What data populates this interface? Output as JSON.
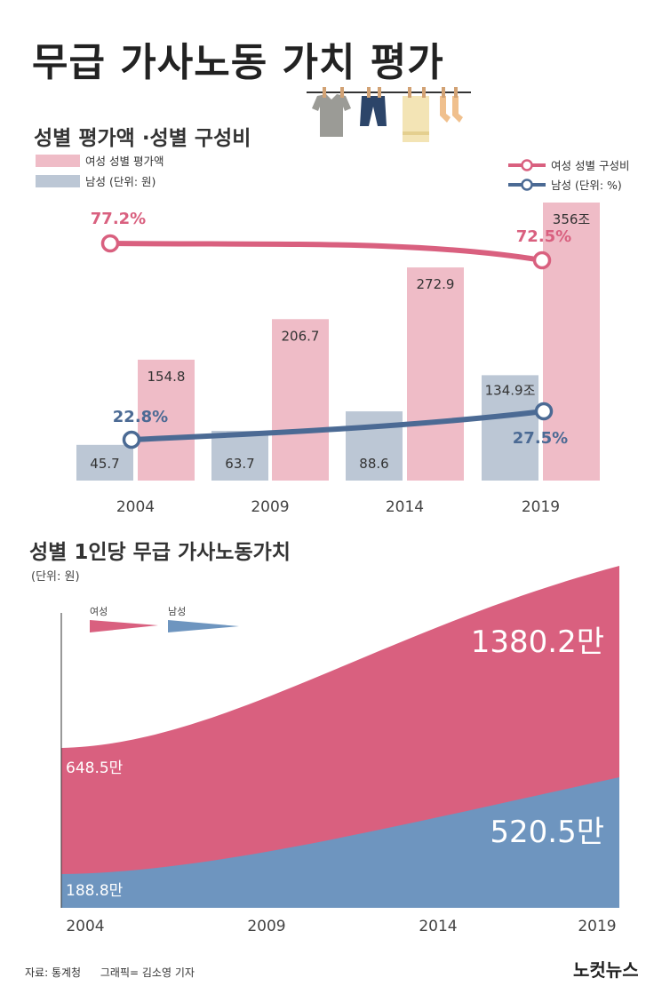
{
  "title": "무급 가사노동 가치 평가",
  "source": {
    "label": "자료: 통계청",
    "credit": "그래픽= 김소영 기자"
  },
  "brand": "노컷뉴스",
  "colors": {
    "female_bar": "#efbcc7",
    "male_bar": "#bcc7d5",
    "female_line": "#d9607f",
    "male_line": "#4b6a94",
    "female_area": "#d9607f",
    "male_area": "#6e95bf"
  },
  "section1": {
    "title": "성별 평가액 ·성별 구성비",
    "legend_left": [
      {
        "label": "여성  성별 평가액",
        "color": "#efbcc7"
      },
      {
        "label": "남성  (단위: 원)",
        "color": "#bcc7d5"
      }
    ],
    "legend_right": [
      {
        "label": "여성  성별 구성비",
        "color": "#d9607f"
      },
      {
        "label": "남성  (단위: %)",
        "color": "#4b6a94"
      }
    ]
  },
  "section2": {
    "title": "성별 1인당 무급 가사노동가치",
    "unit": "(단위: 원)",
    "legend": [
      {
        "label": "여성",
        "color": "#d9607f"
      },
      {
        "label": "남성",
        "color": "#6e95bf"
      }
    ]
  },
  "chart_data": [
    {
      "type": "bar",
      "title": "성별 평가액 ·성별 구성비",
      "categories": [
        "2004",
        "2009",
        "2014",
        "2019"
      ],
      "series": [
        {
          "name": "남성",
          "values": [
            45.7,
            63.7,
            88.6,
            134.9
          ],
          "labels": [
            "45.7",
            "63.7",
            "88.6",
            "134.9조"
          ]
        },
        {
          "name": "여성",
          "values": [
            154.8,
            206.7,
            272.9,
            356
          ],
          "labels": [
            "154.8",
            "206.7",
            "272.9",
            "356조"
          ]
        }
      ],
      "unit": "조 원"
    },
    {
      "type": "line",
      "title": "성별 구성비",
      "x": [
        "2004",
        "2019"
      ],
      "series": [
        {
          "name": "여성",
          "values": [
            77.2,
            72.5
          ],
          "labels": [
            "77.2%",
            "72.5%"
          ]
        },
        {
          "name": "남성",
          "values": [
            22.8,
            27.5
          ],
          "labels": [
            "22.8%",
            "27.5%"
          ]
        }
      ],
      "unit": "%"
    },
    {
      "type": "area",
      "title": "성별 1인당 무급 가사노동가치",
      "x": [
        "2004",
        "2009",
        "2014",
        "2019"
      ],
      "series": [
        {
          "name": "여성",
          "start": 648.5,
          "end": 1380.2,
          "labels": [
            "648.5만",
            "1380.2만"
          ]
        },
        {
          "name": "남성",
          "start": 188.8,
          "end": 520.5,
          "labels": [
            "188.8만",
            "520.5만"
          ]
        }
      ],
      "unit": "만 원"
    }
  ]
}
